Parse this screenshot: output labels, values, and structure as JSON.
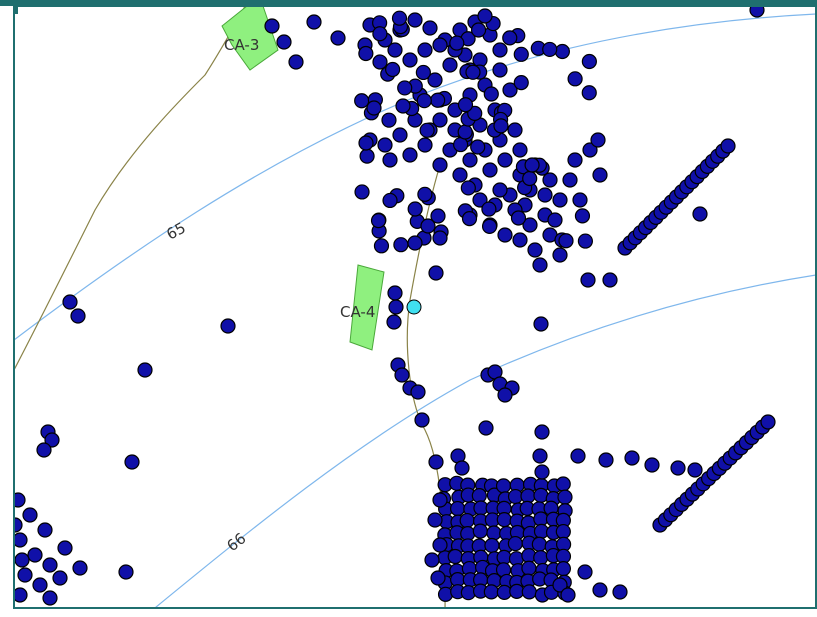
{
  "map": {
    "colors": {
      "frame": "#1f6f6f",
      "contour": "#7fb7ec",
      "road": "#8a8348",
      "parcel_fill": "#8ff07f",
      "parcel_stroke": "#4aa83a",
      "point_fill": "#1010a8",
      "point_stroke": "#000000",
      "highlight_fill": "#40e0f0",
      "label": "#333333"
    },
    "contour_labels": [
      "65",
      "66"
    ],
    "parcels": [
      {
        "id": "ca-3",
        "label": "CA-3"
      },
      {
        "id": "ca-4",
        "label": "CA-4"
      }
    ],
    "icons": {
      "point": "survey-point-icon",
      "highlight": "selected-point-icon"
    }
  }
}
